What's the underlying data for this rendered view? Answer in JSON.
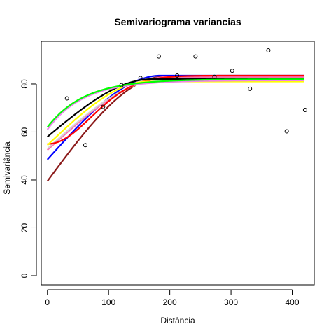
{
  "chart_data": {
    "type": "scatter",
    "title": "Semivariograma variancias",
    "xlabel": "Distância",
    "ylabel": "Semivariância",
    "xlim": [
      -10,
      436
    ],
    "ylim": [
      -3.8,
      97.8
    ],
    "xticks": [
      0,
      100,
      200,
      300,
      400
    ],
    "yticks": [
      0,
      20,
      40,
      60,
      80
    ],
    "grid": false,
    "legend": "none",
    "points": [
      {
        "x": 32,
        "y": 74
      },
      {
        "x": 62,
        "y": 54.5
      },
      {
        "x": 91,
        "y": 70.5
      },
      {
        "x": 121,
        "y": 79.5
      },
      {
        "x": 152,
        "y": 82.5
      },
      {
        "x": 182,
        "y": 91.5
      },
      {
        "x": 212,
        "y": 83.5
      },
      {
        "x": 242,
        "y": 91.5
      },
      {
        "x": 273,
        "y": 83
      },
      {
        "x": 302,
        "y": 85.5
      },
      {
        "x": 331,
        "y": 78
      },
      {
        "x": 361,
        "y": 94
      },
      {
        "x": 391,
        "y": 60.3
      },
      {
        "x": 421,
        "y": 69.2
      }
    ],
    "series": [
      {
        "color": "#8b1a1a",
        "nugget": 39.5,
        "sill": 83.0,
        "range": 190,
        "model": "spherical"
      },
      {
        "color": "#0000ff",
        "nugget": 48.5,
        "sill": 83.5,
        "range": 185,
        "model": "spherical"
      },
      {
        "color": "#ff69b4",
        "nugget": 52.5,
        "sill": 83.0,
        "range": 200,
        "model": "spherical"
      },
      {
        "color": "#d3d3d3",
        "nugget": 53.0,
        "sill": 81.5,
        "range": 185,
        "model": "spherical"
      },
      {
        "color": "#ff0000",
        "nugget": 55.0,
        "sill": 83.5,
        "range": 175,
        "model": "gaussian"
      },
      {
        "color": "#ffff00",
        "nugget": 54.5,
        "sill": 81.0,
        "range": 165,
        "model": "spherical"
      },
      {
        "color": "#000000",
        "nugget": 58.0,
        "sill": 82.0,
        "range": 170,
        "model": "spherical"
      },
      {
        "color": "#ee82ee",
        "nugget": 61.0,
        "sill": 81.5,
        "range": 175,
        "model": "exponential"
      },
      {
        "color": "#00ff00",
        "nugget": 62.0,
        "sill": 82.0,
        "range": 180,
        "model": "exponential"
      }
    ]
  }
}
